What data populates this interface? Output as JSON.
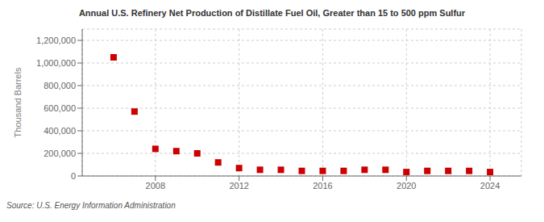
{
  "chart_data": {
    "type": "scatter",
    "title": "Annual U.S. Refinery Net Production of Distillate Fuel Oil, Greater than 15 to 500 ppm Sulfur",
    "ylabel": "Thousand Barrels",
    "source": "Source: U.S. Energy Information Administration",
    "x": [
      2006,
      2007,
      2008,
      2009,
      2010,
      2011,
      2012,
      2013,
      2014,
      2015,
      2016,
      2017,
      2018,
      2019,
      2020,
      2021,
      2022,
      2023,
      2024
    ],
    "values": [
      1050000,
      570000,
      240000,
      220000,
      200000,
      120000,
      70000,
      55000,
      55000,
      45000,
      45000,
      45000,
      55000,
      55000,
      35000,
      45000,
      45000,
      45000,
      35000
    ],
    "color": "#cc0000",
    "marker": "square",
    "xlim": [
      2004.5,
      2025.5
    ],
    "xticks": [
      2008,
      2012,
      2016,
      2020,
      2024
    ],
    "ylim": [
      0,
      1300000
    ],
    "yticks": [
      0,
      {
        "value": 200000,
        "label": "200,000"
      },
      {
        "value": 400000,
        "label": "400,000"
      },
      {
        "value": 600000,
        "label": "600,000"
      },
      {
        "value": 800000,
        "label": "800,000"
      },
      {
        "value": 1000000,
        "label": "1,000,000"
      },
      {
        "value": 1200000,
        "label": "1,200,000"
      }
    ],
    "grid": true
  }
}
